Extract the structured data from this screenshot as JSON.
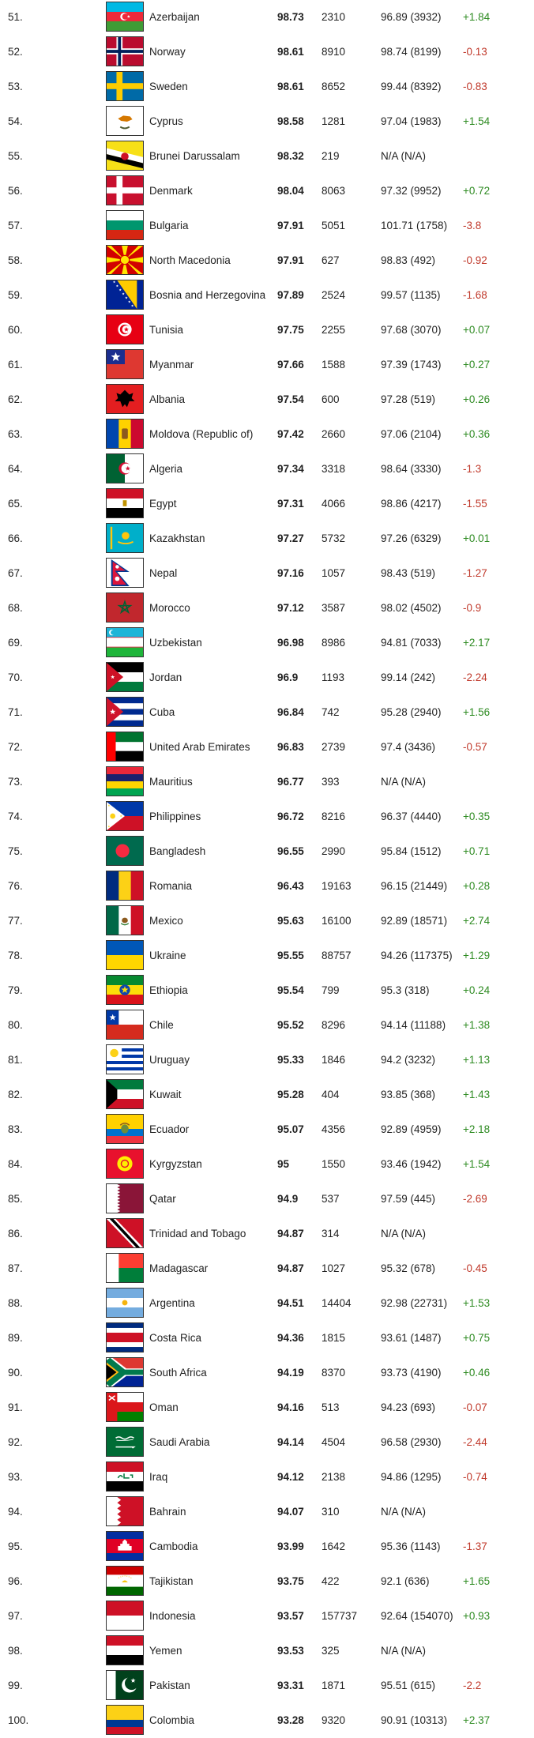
{
  "rows": [
    {
      "rank": "51.",
      "country": "Azerbaijan",
      "score": "98.73",
      "tests": "2310",
      "previous": "96.89 (3932)",
      "change": "+1.84",
      "flag": "azerbaijan-flag-icon",
      "colors": [
        "#3F9C35",
        "#ED2939",
        "#00B9E4"
      ]
    },
    {
      "rank": "52.",
      "country": "Norway",
      "score": "98.61",
      "tests": "8910",
      "previous": "98.74 (8199)",
      "change": "-0.13",
      "flag": "norway-flag-icon",
      "colors": [
        "#BA0C2F",
        "#FFFFFF",
        "#00205B"
      ]
    },
    {
      "rank": "53.",
      "country": "Sweden",
      "score": "98.61",
      "tests": "8652",
      "previous": "99.44 (8392)",
      "change": "-0.83",
      "flag": "sweden-flag-icon",
      "colors": [
        "#006AA7",
        "#FECC00"
      ]
    },
    {
      "rank": "54.",
      "country": "Cyprus",
      "score": "98.58",
      "tests": "1281",
      "previous": "97.04 (1983)",
      "change": "+1.54",
      "flag": "cyprus-flag-icon",
      "colors": [
        "#FFFFFF",
        "#D57800",
        "#4E5B31"
      ]
    },
    {
      "rank": "55.",
      "country": "Brunei Darussalam",
      "score": "98.32",
      "tests": "219",
      "previous": "N/A (N/A)",
      "change": "",
      "flag": "brunei-flag-icon",
      "colors": [
        "#F7E017",
        "#FFFFFF",
        "#000000",
        "#CF1126"
      ]
    },
    {
      "rank": "56.",
      "country": "Denmark",
      "score": "98.04",
      "tests": "8063",
      "previous": "97.32 (9952)",
      "change": "+0.72",
      "flag": "denmark-flag-icon",
      "colors": [
        "#C8102E",
        "#FFFFFF"
      ]
    },
    {
      "rank": "57.",
      "country": "Bulgaria",
      "score": "97.91",
      "tests": "5051",
      "previous": "101.71 (1758)",
      "change": "-3.8",
      "flag": "bulgaria-flag-icon",
      "colors": [
        "#FFFFFF",
        "#00966E",
        "#D62612"
      ]
    },
    {
      "rank": "58.",
      "country": "North Macedonia",
      "score": "97.91",
      "tests": "627",
      "previous": "98.83 (492)",
      "change": "-0.92",
      "flag": "north-macedonia-flag-icon",
      "colors": [
        "#D20000",
        "#FFE600"
      ]
    },
    {
      "rank": "59.",
      "country": "Bosnia and Herzegovina",
      "score": "97.89",
      "tests": "2524",
      "previous": "99.57 (1135)",
      "change": "-1.68",
      "flag": "bosnia-flag-icon",
      "colors": [
        "#002395",
        "#FECB00",
        "#FFFFFF"
      ]
    },
    {
      "rank": "60.",
      "country": "Tunisia",
      "score": "97.75",
      "tests": "2255",
      "previous": "97.68 (3070)",
      "change": "+0.07",
      "flag": "tunisia-flag-icon",
      "colors": [
        "#E70013",
        "#FFFFFF"
      ]
    },
    {
      "rank": "61.",
      "country": "Myanmar",
      "score": "97.66",
      "tests": "1588",
      "previous": "97.39 (1743)",
      "change": "+0.27",
      "flag": "myanmar-flag-icon",
      "colors": [
        "#DE3831",
        "#1B2E8F",
        "#FFFFFF"
      ]
    },
    {
      "rank": "62.",
      "country": "Albania",
      "score": "97.54",
      "tests": "600",
      "previous": "97.28 (519)",
      "change": "+0.26",
      "flag": "albania-flag-icon",
      "colors": [
        "#E41E20",
        "#000000"
      ]
    },
    {
      "rank": "63.",
      "country": "Moldova (Republic of)",
      "score": "97.42",
      "tests": "2660",
      "previous": "97.06 (2104)",
      "change": "+0.36",
      "flag": "moldova-flag-icon",
      "colors": [
        "#0046AE",
        "#FFD200",
        "#CC092F"
      ]
    },
    {
      "rank": "64.",
      "country": "Algeria",
      "score": "97.34",
      "tests": "3318",
      "previous": "98.64 (3330)",
      "change": "-1.3",
      "flag": "algeria-flag-icon",
      "colors": [
        "#006233",
        "#FFFFFF",
        "#D21034"
      ]
    },
    {
      "rank": "65.",
      "country": "Egypt",
      "score": "97.31",
      "tests": "4066",
      "previous": "98.86 (4217)",
      "change": "-1.55",
      "flag": "egypt-flag-icon",
      "colors": [
        "#CE1126",
        "#FFFFFF",
        "#000000",
        "#C09300"
      ]
    },
    {
      "rank": "66.",
      "country": "Kazakhstan",
      "score": "97.27",
      "tests": "5732",
      "previous": "97.26 (6329)",
      "change": "+0.01",
      "flag": "kazakhstan-flag-icon",
      "colors": [
        "#00AFCA",
        "#FEC50C"
      ]
    },
    {
      "rank": "67.",
      "country": "Nepal",
      "score": "97.16",
      "tests": "1057",
      "previous": "98.43 (519)",
      "change": "-1.27",
      "flag": "nepal-flag-icon",
      "colors": [
        "#DC143C",
        "#003893",
        "#FFFFFF"
      ]
    },
    {
      "rank": "68.",
      "country": "Morocco",
      "score": "97.12",
      "tests": "3587",
      "previous": "98.02 (4502)",
      "change": "-0.9",
      "flag": "morocco-flag-icon",
      "colors": [
        "#C1272D",
        "#006233"
      ]
    },
    {
      "rank": "69.",
      "country": "Uzbekistan",
      "score": "96.98",
      "tests": "8986",
      "previous": "94.81 (7033)",
      "change": "+2.17",
      "flag": "uzbekistan-flag-icon",
      "colors": [
        "#1EB5D8",
        "#FFFFFF",
        "#1EB53A",
        "#CE1126"
      ]
    },
    {
      "rank": "70.",
      "country": "Jordan",
      "score": "96.9",
      "tests": "1193",
      "previous": "99.14 (242)",
      "change": "-2.24",
      "flag": "jordan-flag-icon",
      "colors": [
        "#000000",
        "#FFFFFF",
        "#007A3D",
        "#CE1126"
      ]
    },
    {
      "rank": "71.",
      "country": "Cuba",
      "score": "96.84",
      "tests": "742",
      "previous": "95.28 (2940)",
      "change": "+1.56",
      "flag": "cuba-flag-icon",
      "colors": [
        "#002A8F",
        "#FFFFFF",
        "#CF142B"
      ]
    },
    {
      "rank": "72.",
      "country": "United Arab Emirates",
      "score": "96.83",
      "tests": "2739",
      "previous": "97.4 (3436)",
      "change": "-0.57",
      "flag": "uae-flag-icon",
      "colors": [
        "#00732F",
        "#FFFFFF",
        "#000000",
        "#FF0000"
      ]
    },
    {
      "rank": "73.",
      "country": "Mauritius",
      "score": "96.77",
      "tests": "393",
      "previous": "N/A (N/A)",
      "change": "",
      "flag": "mauritius-flag-icon",
      "colors": [
        "#EA2839",
        "#1A206D",
        "#FFD500",
        "#00A551"
      ]
    },
    {
      "rank": "74.",
      "country": "Philippines",
      "score": "96.72",
      "tests": "8216",
      "previous": "96.37 (4440)",
      "change": "+0.35",
      "flag": "philippines-flag-icon",
      "colors": [
        "#0038A8",
        "#CE1126",
        "#FFFFFF",
        "#FCD116"
      ]
    },
    {
      "rank": "75.",
      "country": "Bangladesh",
      "score": "96.55",
      "tests": "2990",
      "previous": "95.84 (1512)",
      "change": "+0.71",
      "flag": "bangladesh-flag-icon",
      "colors": [
        "#006A4E",
        "#F42A41"
      ]
    },
    {
      "rank": "76.",
      "country": "Romania",
      "score": "96.43",
      "tests": "19163",
      "previous": "96.15 (21449)",
      "change": "+0.28",
      "flag": "romania-flag-icon",
      "colors": [
        "#002B7F",
        "#FCD116",
        "#CE1126"
      ]
    },
    {
      "rank": "77.",
      "country": "Mexico",
      "score": "95.63",
      "tests": "16100",
      "previous": "92.89 (18571)",
      "change": "+2.74",
      "flag": "mexico-flag-icon",
      "colors": [
        "#006847",
        "#FFFFFF",
        "#CE1126"
      ]
    },
    {
      "rank": "78.",
      "country": "Ukraine",
      "score": "95.55",
      "tests": "88757",
      "previous": "94.26 (117375)",
      "change": "+1.29",
      "flag": "ukraine-flag-icon",
      "colors": [
        "#0057B7",
        "#FFD700"
      ]
    },
    {
      "rank": "79.",
      "country": "Ethiopia",
      "score": "95.54",
      "tests": "799",
      "previous": "95.3 (318)",
      "change": "+0.24",
      "flag": "ethiopia-flag-icon",
      "colors": [
        "#078930",
        "#FCDD09",
        "#DA121A",
        "#0F47AF"
      ]
    },
    {
      "rank": "80.",
      "country": "Chile",
      "score": "95.52",
      "tests": "8296",
      "previous": "94.14 (11188)",
      "change": "+1.38",
      "flag": "chile-flag-icon",
      "colors": [
        "#0039A6",
        "#FFFFFF",
        "#D52B1E"
      ]
    },
    {
      "rank": "81.",
      "country": "Uruguay",
      "score": "95.33",
      "tests": "1846",
      "previous": "94.2 (3232)",
      "change": "+1.13",
      "flag": "uruguay-flag-icon",
      "colors": [
        "#FFFFFF",
        "#0038A8",
        "#FCD116"
      ]
    },
    {
      "rank": "82.",
      "country": "Kuwait",
      "score": "95.28",
      "tests": "404",
      "previous": "93.85 (368)",
      "change": "+1.43",
      "flag": "kuwait-flag-icon",
      "colors": [
        "#007A3D",
        "#FFFFFF",
        "#CE1126",
        "#000000"
      ]
    },
    {
      "rank": "83.",
      "country": "Ecuador",
      "score": "95.07",
      "tests": "4356",
      "previous": "92.89 (4959)",
      "change": "+2.18",
      "flag": "ecuador-flag-icon",
      "colors": [
        "#FFD100",
        "#0072CE",
        "#EF3340"
      ]
    },
    {
      "rank": "84.",
      "country": "Kyrgyzstan",
      "score": "95",
      "tests": "1550",
      "previous": "93.46 (1942)",
      "change": "+1.54",
      "flag": "kyrgyzstan-flag-icon",
      "colors": [
        "#E8112D",
        "#FFEF00"
      ]
    },
    {
      "rank": "85.",
      "country": "Qatar",
      "score": "94.9",
      "tests": "537",
      "previous": "97.59 (445)",
      "change": "-2.69",
      "flag": "qatar-flag-icon",
      "colors": [
        "#FFFFFF",
        "#8A1538"
      ]
    },
    {
      "rank": "86.",
      "country": "Trinidad and Tobago",
      "score": "94.87",
      "tests": "314",
      "previous": "N/A (N/A)",
      "change": "",
      "flag": "trinidad-flag-icon",
      "colors": [
        "#CE1126",
        "#FFFFFF",
        "#000000"
      ]
    },
    {
      "rank": "87.",
      "country": "Madagascar",
      "score": "94.87",
      "tests": "1027",
      "previous": "95.32 (678)",
      "change": "-0.45",
      "flag": "madagascar-flag-icon",
      "colors": [
        "#FFFFFF",
        "#FC3D32",
        "#007E3A"
      ]
    },
    {
      "rank": "88.",
      "country": "Argentina",
      "score": "94.51",
      "tests": "14404",
      "previous": "92.98 (22731)",
      "change": "+1.53",
      "flag": "argentina-flag-icon",
      "colors": [
        "#74ACDF",
        "#FFFFFF",
        "#F6B40E"
      ]
    },
    {
      "rank": "89.",
      "country": "Costa Rica",
      "score": "94.36",
      "tests": "1815",
      "previous": "93.61 (1487)",
      "change": "+0.75",
      "flag": "costa-rica-flag-icon",
      "colors": [
        "#002B7F",
        "#FFFFFF",
        "#CE1126"
      ]
    },
    {
      "rank": "90.",
      "country": "South Africa",
      "score": "94.19",
      "tests": "8370",
      "previous": "93.73 (4190)",
      "change": "+0.46",
      "flag": "south-africa-flag-icon",
      "colors": [
        "#007A4D",
        "#DE3831",
        "#002395",
        "#FFB612",
        "#000000",
        "#FFFFFF"
      ]
    },
    {
      "rank": "91.",
      "country": "Oman",
      "score": "94.16",
      "tests": "513",
      "previous": "94.23 (693)",
      "change": "-0.07",
      "flag": "oman-flag-icon",
      "colors": [
        "#DB161B",
        "#FFFFFF",
        "#008000"
      ]
    },
    {
      "rank": "92.",
      "country": "Saudi Arabia",
      "score": "94.14",
      "tests": "4504",
      "previous": "96.58 (2930)",
      "change": "-2.44",
      "flag": "saudi-arabia-flag-icon",
      "colors": [
        "#006C35",
        "#FFFFFF"
      ]
    },
    {
      "rank": "93.",
      "country": "Iraq",
      "score": "94.12",
      "tests": "2138",
      "previous": "94.86 (1295)",
      "change": "-0.74",
      "flag": "iraq-flag-icon",
      "colors": [
        "#CE1126",
        "#FFFFFF",
        "#000000",
        "#007A3D"
      ]
    },
    {
      "rank": "94.",
      "country": "Bahrain",
      "score": "94.07",
      "tests": "310",
      "previous": "N/A (N/A)",
      "change": "",
      "flag": "bahrain-flag-icon",
      "colors": [
        "#FFFFFF",
        "#CE1126"
      ]
    },
    {
      "rank": "95.",
      "country": "Cambodia",
      "score": "93.99",
      "tests": "1642",
      "previous": "95.36 (1143)",
      "change": "-1.37",
      "flag": "cambodia-flag-icon",
      "colors": [
        "#032EA1",
        "#E00025",
        "#FFFFFF"
      ]
    },
    {
      "rank": "96.",
      "country": "Tajikistan",
      "score": "93.75",
      "tests": "422",
      "previous": "92.1 (636)",
      "change": "+1.65",
      "flag": "tajikistan-flag-icon",
      "colors": [
        "#CC0000",
        "#FFFFFF",
        "#006600",
        "#F8C300"
      ]
    },
    {
      "rank": "97.",
      "country": "Indonesia",
      "score": "93.57",
      "tests": "157737",
      "previous": "92.64 (154070)",
      "change": "+0.93",
      "flag": "indonesia-flag-icon",
      "colors": [
        "#CE1126",
        "#FFFFFF"
      ]
    },
    {
      "rank": "98.",
      "country": "Yemen",
      "score": "93.53",
      "tests": "325",
      "previous": "N/A (N/A)",
      "change": "",
      "flag": "yemen-flag-icon",
      "colors": [
        "#CE1126",
        "#FFFFFF",
        "#000000"
      ]
    },
    {
      "rank": "99.",
      "country": "Pakistan",
      "score": "93.31",
      "tests": "1871",
      "previous": "95.51 (615)",
      "change": "-2.2",
      "flag": "pakistan-flag-icon",
      "colors": [
        "#01411C",
        "#FFFFFF"
      ]
    },
    {
      "rank": "100.",
      "country": "Colombia",
      "score": "93.28",
      "tests": "9320",
      "previous": "90.91 (10313)",
      "change": "+2.37",
      "flag": "colombia-flag-icon",
      "colors": [
        "#FCD116",
        "#003893",
        "#CE1126"
      ]
    }
  ]
}
